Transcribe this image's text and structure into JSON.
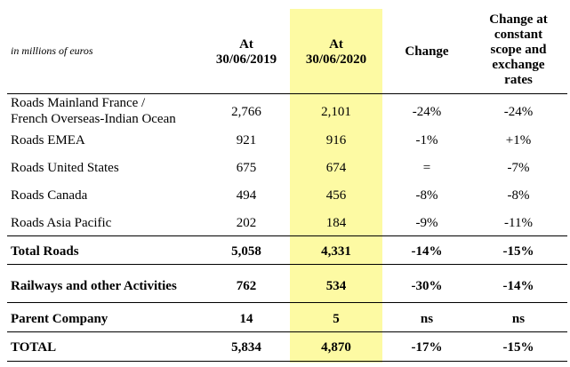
{
  "unit_label": "in millions of euros",
  "headers": {
    "col1": [
      "At",
      "30/06/2019"
    ],
    "col2": [
      "At",
      "30/06/2020"
    ],
    "col3": "Change",
    "col4": [
      "Change at",
      "constant",
      "scope and",
      "exchange",
      "rates"
    ]
  },
  "colors": {
    "highlight": "#fdfaa3"
  },
  "rows": [
    {
      "label": [
        "Roads Mainland France /",
        "French Overseas-Indian Ocean"
      ],
      "v2019": "2,766",
      "v2020": "2,101",
      "change": "-24%",
      "change_const": "-24%",
      "bold": false
    },
    {
      "label": [
        "Roads EMEA"
      ],
      "v2019": "921",
      "v2020": "916",
      "change": "-1%",
      "change_const": "+1%",
      "bold": false
    },
    {
      "label": [
        "Roads United States"
      ],
      "v2019": "675",
      "v2020": "674",
      "change": "=",
      "change_const": "-7%",
      "bold": false
    },
    {
      "label": [
        "Roads Canada"
      ],
      "v2019": "494",
      "v2020": "456",
      "change": "-8%",
      "change_const": "-8%",
      "bold": false
    },
    {
      "label": [
        "Roads Asia Pacific"
      ],
      "v2019": "202",
      "v2020": "184",
      "change": "-9%",
      "change_const": "-11%",
      "bold": false
    },
    {
      "label": [
        "Total Roads"
      ],
      "v2019": "5,058",
      "v2020": "4,331",
      "change": "-14%",
      "change_const": "-15%",
      "bold": true
    },
    {
      "label": [
        "Railways and other Activities"
      ],
      "v2019": "762",
      "v2020": "534",
      "change": "-30%",
      "change_const": "-14%",
      "bold": true
    },
    {
      "label": [
        "Parent Company"
      ],
      "v2019": "14",
      "v2020": "5",
      "change": "ns",
      "change_const": "ns",
      "bold": true
    },
    {
      "label": [
        "TOTAL"
      ],
      "v2019": "5,834",
      "v2020": "4,870",
      "change": "-17%",
      "change_const": "-15%",
      "bold": true
    }
  ]
}
